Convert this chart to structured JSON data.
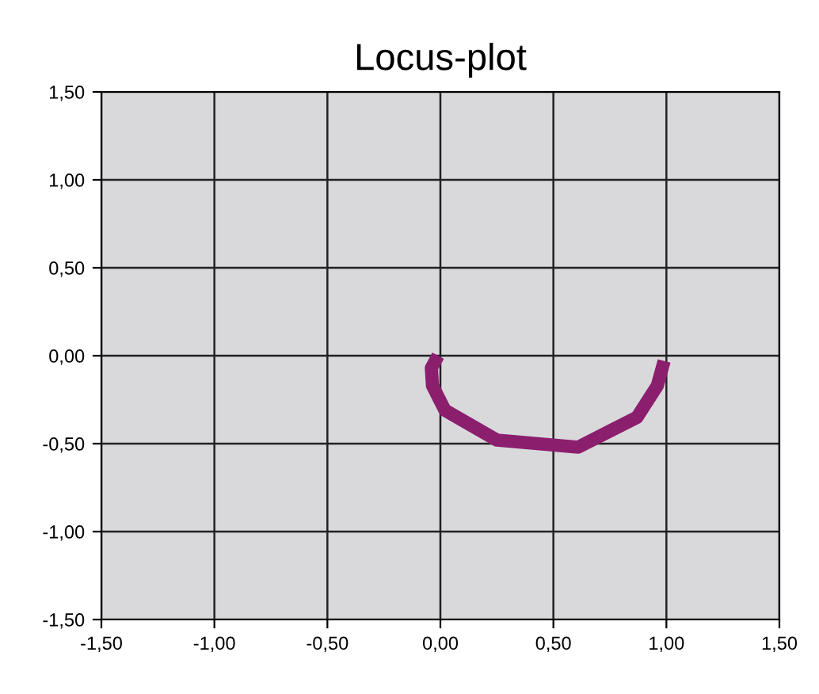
{
  "chart_data": {
    "type": "line",
    "title": "Locus-plot",
    "x": [
      -0.01,
      -0.04,
      -0.035,
      0.02,
      0.25,
      0.61,
      0.87,
      0.96,
      0.99
    ],
    "series": [
      {
        "color": "#8b1f6e",
        "values": [
          0.0,
          -0.07,
          -0.17,
          -0.31,
          -0.48,
          -0.52,
          -0.35,
          -0.17,
          -0.03
        ]
      }
    ],
    "xlim": [
      -1.5,
      1.5
    ],
    "ylim": [
      -1.5,
      1.5
    ],
    "xticks": [
      {
        "value": -1.5,
        "label": "-1,50"
      },
      {
        "value": -1.0,
        "label": "-1,00"
      },
      {
        "value": -0.5,
        "label": "-0,50"
      },
      {
        "value": 0,
        "label": "0,00"
      },
      {
        "value": 0.5,
        "label": "0,50"
      },
      {
        "value": 1.0,
        "label": "1,00"
      },
      {
        "value": 1.5,
        "label": "1,50"
      }
    ],
    "yticks": [
      {
        "value": -1.5,
        "label": "-1,50"
      },
      {
        "value": -1.0,
        "label": "-1,00"
      },
      {
        "value": -0.5,
        "label": "-0,50"
      },
      {
        "value": 0,
        "label": "0,00"
      },
      {
        "value": 0.5,
        "label": "0,50"
      },
      {
        "value": 1.0,
        "label": "1,00"
      },
      {
        "value": 1.5,
        "label": "1,50"
      }
    ],
    "grid": true,
    "marker": "none",
    "line_style": "solid"
  }
}
